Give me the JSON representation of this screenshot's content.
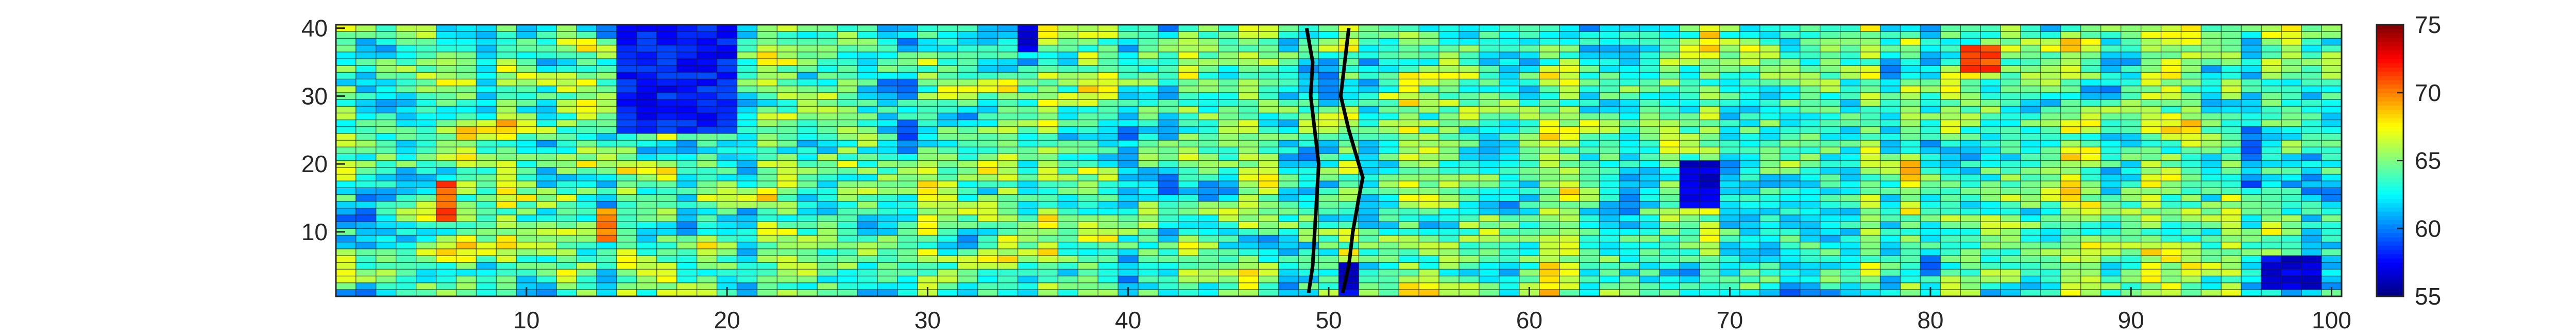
{
  "chart_data": {
    "type": "heatmap",
    "title": "",
    "xlabel": "",
    "ylabel": "",
    "xlim": [
      1,
      100
    ],
    "ylim": [
      1,
      40
    ],
    "x_ticks": [
      10,
      20,
      30,
      40,
      50,
      60,
      70,
      80,
      90,
      100
    ],
    "y_ticks": [
      10,
      20,
      30,
      40
    ],
    "grid_size": {
      "columns": 100,
      "rows": 40
    },
    "colormap": "jet",
    "colorbar": {
      "range": [
        55,
        75
      ],
      "ticks": [
        55,
        60,
        65,
        70,
        75
      ],
      "placement": "right"
    },
    "value_summary": {
      "typical": 64,
      "min_visible": 55,
      "max_visible": 72
    },
    "notable_regions": [
      {
        "x": [
          15,
          20
        ],
        "y": [
          25,
          40
        ],
        "value": 58
      },
      {
        "x": [
          6,
          6
        ],
        "y": [
          12,
          17
        ],
        "value": 71
      },
      {
        "x": [
          14,
          14
        ],
        "y": [
          9,
          13
        ],
        "value": 70
      },
      {
        "x": [
          68,
          69
        ],
        "y": [
          14,
          20
        ],
        "value": 57
      },
      {
        "x": [
          82,
          83
        ],
        "y": [
          34,
          37
        ],
        "value": 71
      },
      {
        "x": [
          97,
          99
        ],
        "y": [
          2,
          6
        ],
        "value": 57
      },
      {
        "x": [
          35,
          35
        ],
        "y": [
          37,
          40
        ],
        "value": 57
      },
      {
        "x": [
          51,
          51
        ],
        "y": [
          1,
          5
        ],
        "value": 57
      }
    ],
    "overlay_lines": [
      {
        "points": [
          [
            49.0,
            1
          ],
          [
            49.2,
            5
          ],
          [
            49.3,
            10
          ],
          [
            49.4,
            15
          ],
          [
            49.5,
            20
          ],
          [
            49.3,
            25
          ],
          [
            49.1,
            30
          ],
          [
            49.2,
            35
          ],
          [
            48.9,
            40
          ]
        ]
      },
      {
        "points": [
          [
            50.7,
            1
          ],
          [
            51.0,
            5
          ],
          [
            51.2,
            10
          ],
          [
            51.5,
            15
          ],
          [
            51.7,
            18
          ],
          [
            51.3,
            22
          ],
          [
            51.0,
            25
          ],
          [
            50.6,
            30
          ],
          [
            50.8,
            35
          ],
          [
            51.0,
            40
          ]
        ]
      }
    ]
  }
}
